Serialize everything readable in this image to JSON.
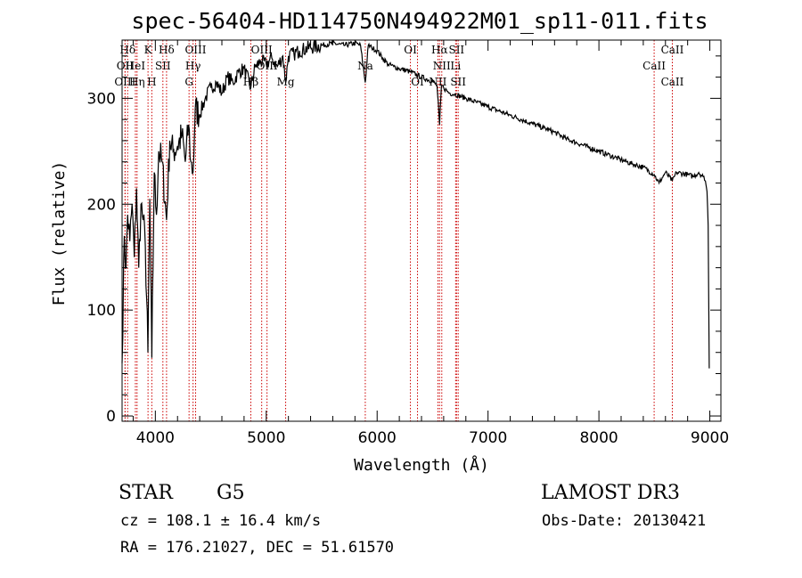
{
  "chart_data": {
    "type": "line",
    "title": "spec-56404-HD114750N494922M01_sp11-011.fits",
    "xlabel": "Wavelength (Å)",
    "ylabel": "Flux (relative)",
    "xlim": [
      3700,
      9100
    ],
    "ylim": [
      -5,
      355
    ],
    "x_ticks": [
      4000,
      5000,
      6000,
      7000,
      8000,
      9000
    ],
    "x_tick_labels": [
      "4000",
      "5000",
      "6000",
      "7000",
      "8000",
      "9000"
    ],
    "y_ticks": [
      0,
      100,
      200,
      300
    ],
    "y_tick_labels": [
      "0",
      "100",
      "200",
      "300"
    ],
    "series": [
      {
        "name": "flux",
        "x": [
          3700,
          3720,
          3735,
          3750,
          3770,
          3790,
          3810,
          3830,
          3850,
          3870,
          3890,
          3910,
          3933,
          3950,
          3968,
          3990,
          4010,
          4030,
          4060,
          4101,
          4130,
          4160,
          4200,
          4240,
          4270,
          4300,
          4320,
          4340,
          4360,
          4400,
          4450,
          4500,
          4550,
          4600,
          4650,
          4700,
          4750,
          4800,
          4861,
          4900,
          4950,
          5000,
          5050,
          5100,
          5150,
          5175,
          5200,
          5250,
          5300,
          5400,
          5500,
          5600,
          5700,
          5800,
          5850,
          5893,
          5920,
          5950,
          6000,
          6050,
          6100,
          6150,
          6200,
          6300,
          6400,
          6500,
          6540,
          6563,
          6580,
          6600,
          6650,
          6700,
          6800,
          6900,
          7000,
          7100,
          7200,
          7300,
          7400,
          7500,
          7600,
          7700,
          7800,
          7900,
          8000,
          8100,
          8200,
          8300,
          8400,
          8498,
          8542,
          8600,
          8662,
          8700,
          8800,
          8850,
          8900,
          8940,
          8960,
          8975,
          8985,
          8995
        ],
        "y": [
          50,
          170,
          140,
          190,
          165,
          200,
          150,
          215,
          140,
          200,
          185,
          160,
          60,
          205,
          55,
          230,
          190,
          250,
          240,
          185,
          260,
          250,
          255,
          265,
          240,
          275,
          240,
          230,
          290,
          285,
          300,
          310,
          315,
          305,
          320,
          315,
          325,
          328,
          310,
          330,
          335,
          332,
          338,
          330,
          340,
          315,
          340,
          342,
          345,
          348,
          350,
          352,
          350,
          352,
          350,
          315,
          350,
          348,
          345,
          338,
          332,
          330,
          328,
          325,
          320,
          316,
          312,
          275,
          312,
          310,
          305,
          304,
          300,
          296,
          292,
          288,
          284,
          280,
          276,
          272,
          268,
          262,
          258,
          254,
          250,
          246,
          242,
          238,
          235,
          228,
          220,
          230,
          222,
          230,
          228,
          226,
          230,
          226,
          222,
          212,
          180,
          45
        ]
      }
    ],
    "line_markers": [
      {
        "label": "Hδ",
        "x": 3750,
        "tier": 1
      },
      {
        "label": "K",
        "x": 3934,
        "tier": 1
      },
      {
        "label": "Hδ",
        "x": 4101,
        "tier": 1
      },
      {
        "label": "OIII",
        "x": 4363,
        "tier": 1
      },
      {
        "label": "OIII",
        "x": 4959,
        "tier": 1
      },
      {
        "label": "OI",
        "x": 6300,
        "tier": 1
      },
      {
        "label": "Hα",
        "x": 6563,
        "tier": 1
      },
      {
        "label": "SII",
        "x": 6716,
        "tier": 1
      },
      {
        "label": "CaII",
        "x": 8662,
        "tier": 1
      },
      {
        "label": "OII",
        "x": 3727,
        "tier": 2
      },
      {
        "label": "HeI",
        "x": 3820,
        "tier": 2
      },
      {
        "label": "SII",
        "x": 4068,
        "tier": 2
      },
      {
        "label": "Hγ",
        "x": 4340,
        "tier": 2
      },
      {
        "label": "OIII",
        "x": 5007,
        "tier": 2
      },
      {
        "label": "Na",
        "x": 5893,
        "tier": 2
      },
      {
        "label": "NII",
        "x": 6583,
        "tier": 2
      },
      {
        "label": "Li",
        "x": 6708,
        "tier": 2
      },
      {
        "label": "CaII",
        "x": 8498,
        "tier": 2
      },
      {
        "label": "OIII",
        "x": 3727,
        "tier": 3
      },
      {
        "label": "Hη",
        "x": 3835,
        "tier": 3
      },
      {
        "label": "H",
        "x": 3968,
        "tier": 3
      },
      {
        "label": "G",
        "x": 4304,
        "tier": 3
      },
      {
        "label": "OI",
        "x": 6364,
        "tier": 3
      },
      {
        "label": "NII",
        "x": 6548,
        "tier": 3
      },
      {
        "label": "SII",
        "x": 6731,
        "tier": 3
      },
      {
        "label": "CaII",
        "x": 8662,
        "tier": 3
      },
      {
        "label": "Hβ",
        "x": 4861,
        "tier": 4
      },
      {
        "label": "Mg",
        "x": 5175,
        "tier": 4
      }
    ],
    "colors": {
      "line": "#000000",
      "marker": "#cc0000",
      "axes": "#000000"
    }
  },
  "info": {
    "object_class": "STAR",
    "subclass": "G5",
    "survey": "LAMOST DR3",
    "redshift": "cz = 108.1 ± 16.4 km/s",
    "obs_date": "Obs-Date: 20130421",
    "coords": "RA = 176.21027, DEC =  51.61570"
  }
}
